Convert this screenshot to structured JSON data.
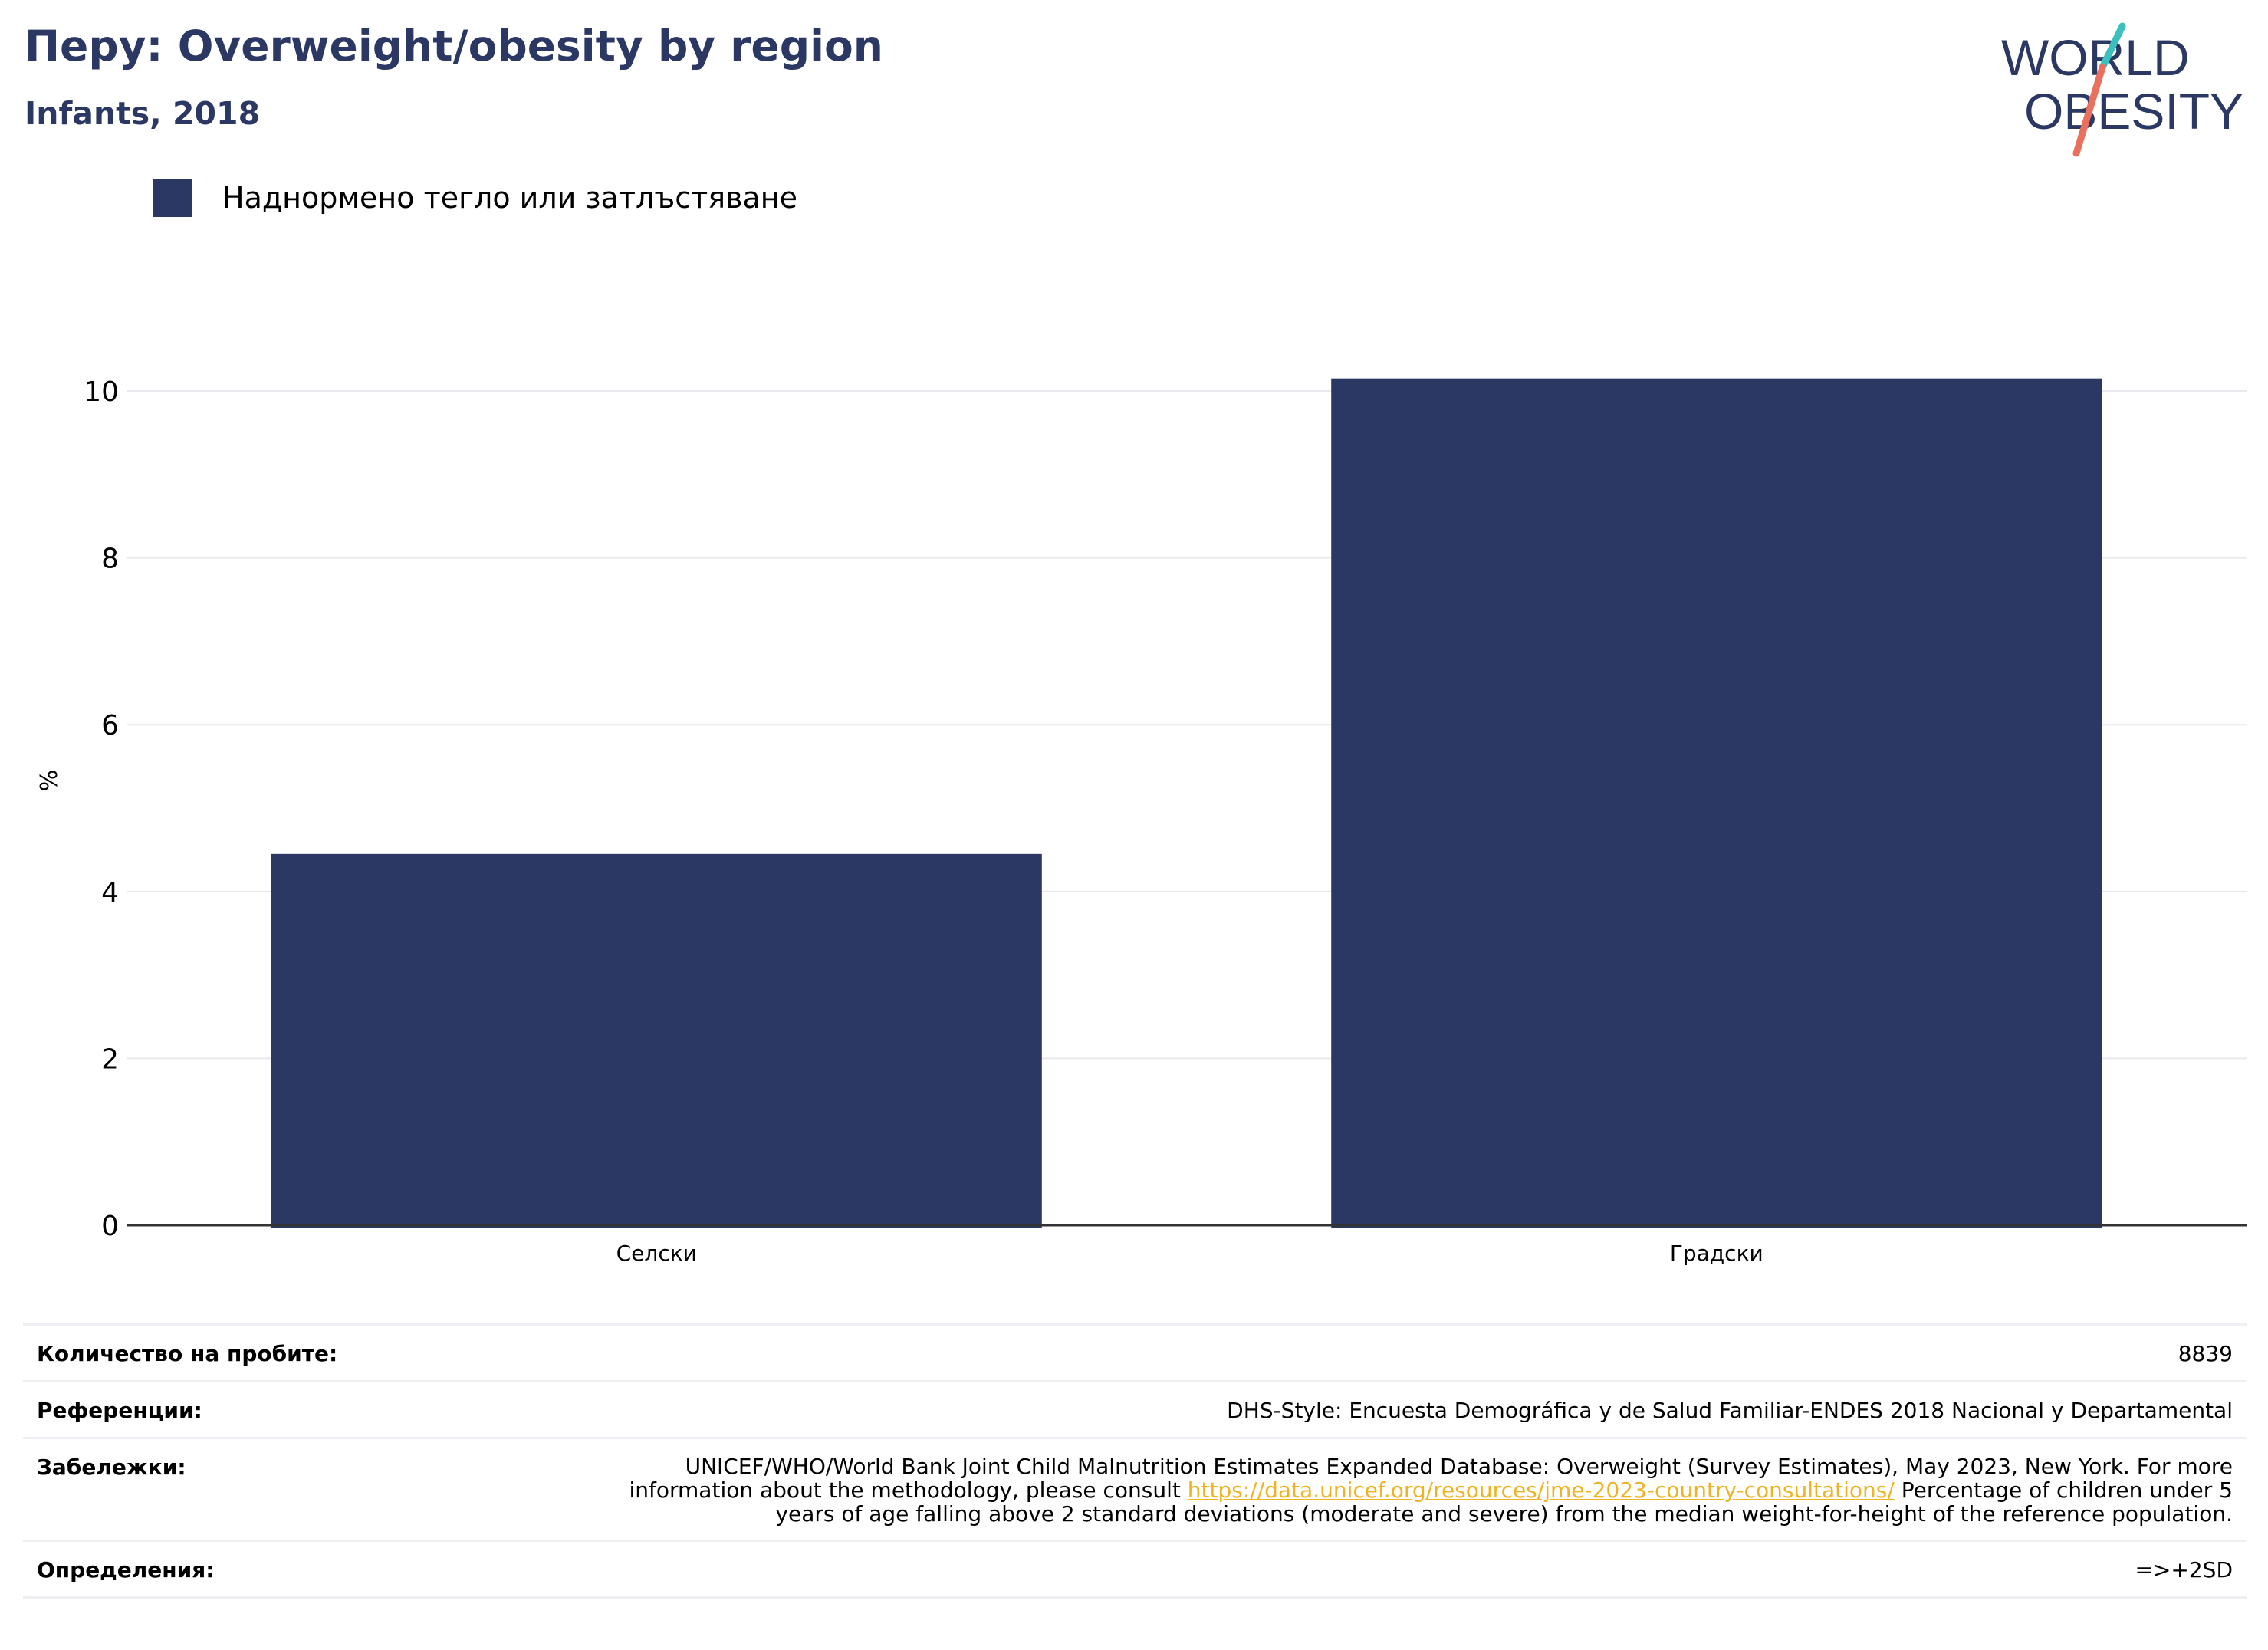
{
  "header": {
    "title": "Перу: Overweight/obesity by region",
    "subtitle": "Infants, 2018"
  },
  "logo": {
    "line1": "WORLD",
    "line2": "OBESITY"
  },
  "colors": {
    "bar": "#2a3863",
    "title": "#2a3863",
    "link": "#f0b323",
    "logo_teal": "#3bbfbf",
    "logo_coral": "#e8705d"
  },
  "chart_data": {
    "type": "bar",
    "categories": [
      "Селски",
      "Градски"
    ],
    "series": [
      {
        "name": "Наднормено тегло или затлъстяване",
        "values": [
          4.45,
          10.15
        ]
      }
    ],
    "ylabel": "%",
    "xlabel": "",
    "ylim": [
      0,
      10.5
    ],
    "yticks": [
      0,
      2,
      4,
      6,
      8,
      10
    ],
    "grid": true,
    "legend": "top-left"
  },
  "info": {
    "sample_label": "Количество на пробите:",
    "sample_value": "8839",
    "references_label": "Референции:",
    "references_value": "DHS-Style: Encuesta Demográfica y de Salud Familiar-ENDES 2018 Nacional y Departamental",
    "notes_label": "Забележки:",
    "notes_text_1": "UNICEF/WHO/World Bank Joint Child Malnutrition Estimates Expanded Database: Overweight (Survey Estimates), May 2023, New York. For more information about the methodology, please consult",
    "notes_link": "https://data.unicef.org/resources/jme-2023-country-consultations/",
    "notes_text_2": "Percentage of children under 5 years of age falling above 2 standard deviations (moderate and severe) from the median weight-for-height of the reference population.",
    "definitions_label": "Определения:",
    "definitions_value": "=>+2SD"
  }
}
